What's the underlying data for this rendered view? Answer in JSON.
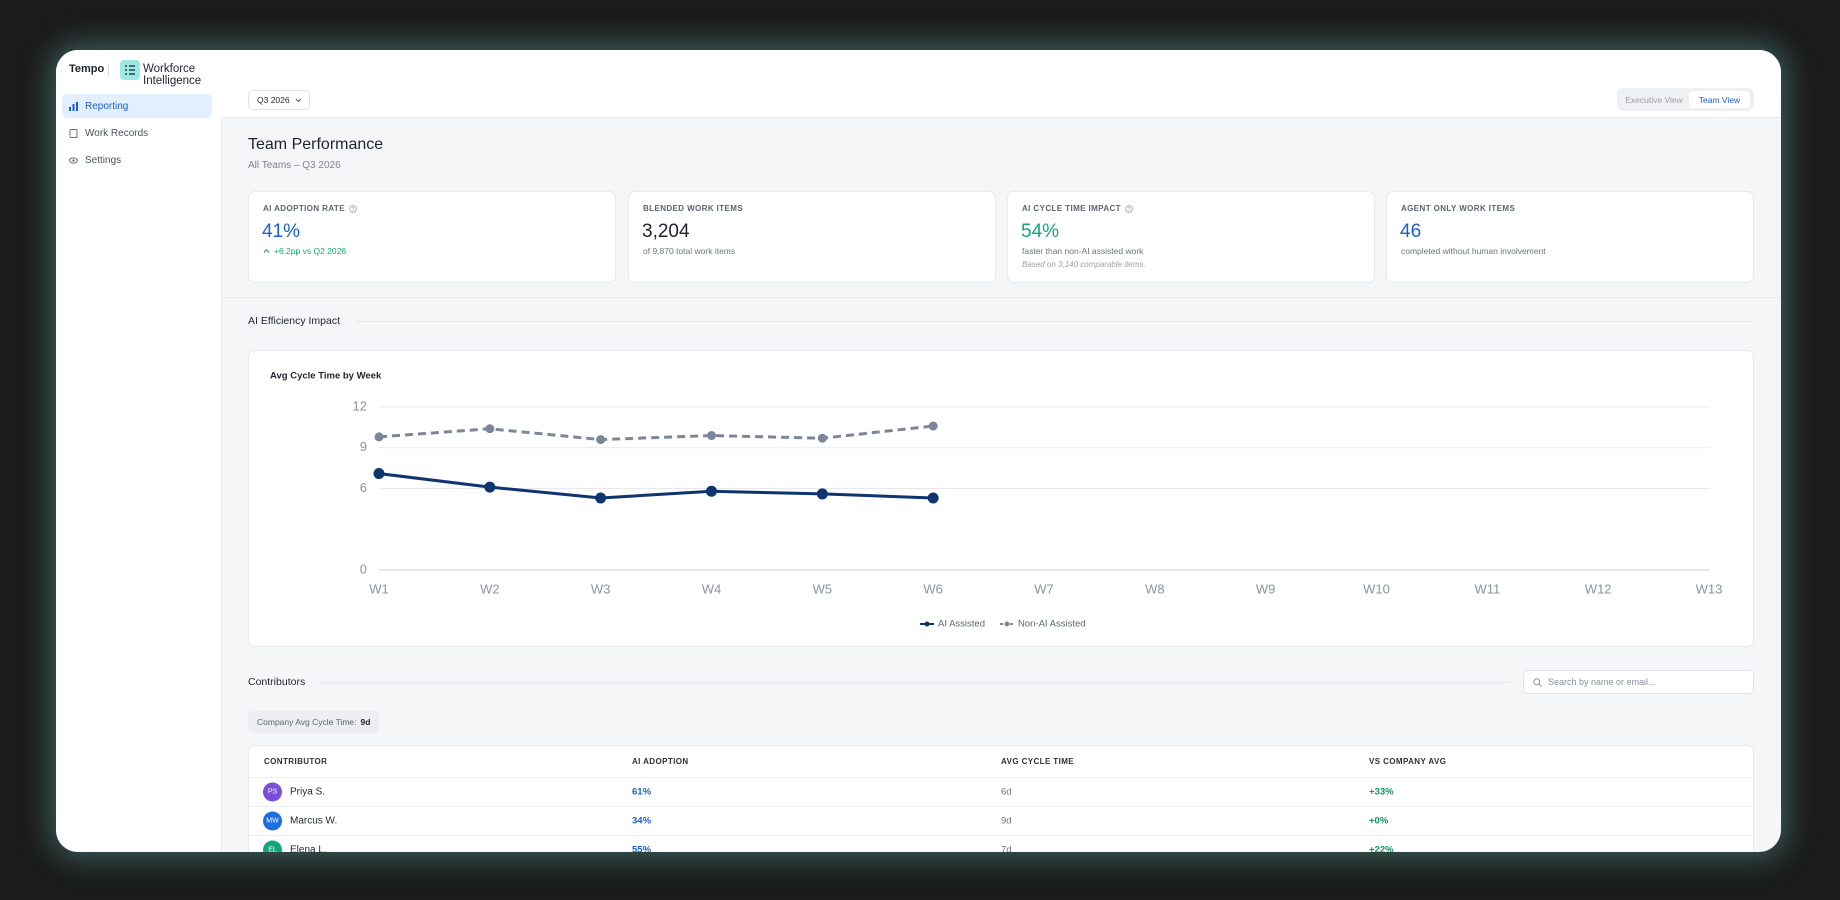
{
  "app": {
    "brand": "Tempo",
    "product": "Workforce Intelligence"
  },
  "nav": [
    "Reporting",
    "Work Records",
    "Settings"
  ],
  "period": "Q3 2026",
  "views": [
    "Executive View",
    "Team View"
  ],
  "page": {
    "title": "Team Performance",
    "subtitle": "All Teams – Q3 2026"
  },
  "cards": [
    {
      "label": "AI ADOPTION RATE",
      "value": "41%",
      "note": "+6.2pp vs Q2 2026"
    },
    {
      "label": "BLENDED WORK ITEMS",
      "value": "3,204",
      "note": "of 9,870 total work items"
    },
    {
      "label": "AI CYCLE TIME IMPACT",
      "value": "54%",
      "note": "faster than non-AI assisted work",
      "footnote": "Based on 3,140 comparable items."
    },
    {
      "label": "AGENT ONLY WORK ITEMS",
      "value": "46",
      "note": "completed without human involvement"
    }
  ],
  "section_title": "AI Efficiency Impact",
  "chart_data": {
    "type": "line",
    "title": "Avg Cycle Time by Week",
    "categories": [
      "W1",
      "W2",
      "W3",
      "W4",
      "W5",
      "W6",
      "W7",
      "W8",
      "W9",
      "W10",
      "W11",
      "W12",
      "W13"
    ],
    "series": [
      {
        "name": "AI Assisted",
        "color": "#0f3570",
        "values": [
          7.1,
          6.1,
          5.3,
          5.8,
          5.6,
          5.3,
          null,
          null,
          null,
          null,
          null,
          null,
          null
        ]
      },
      {
        "name": "Non-AI Assisted",
        "color": "#7b8799",
        "dashed": true,
        "values": [
          9.8,
          10.4,
          9.6,
          9.9,
          9.7,
          10.6,
          null,
          null,
          null,
          null,
          null,
          null,
          null
        ]
      }
    ],
    "ylim": [
      0,
      12
    ],
    "yticks": [
      0,
      6,
      9,
      12
    ],
    "grid": true,
    "legend": "bottom"
  },
  "contributors": {
    "title": "Contributors",
    "search_placeholder": "Search by name or email...",
    "company_avg_label": "Company Avg Cycle Time:",
    "company_avg_value": "9d",
    "columns": [
      "CONTRIBUTOR",
      "AI ADOPTION",
      "AVG CYCLE TIME",
      "VS COMPANY AVG"
    ],
    "rows": [
      {
        "initials": "PS",
        "color": "#7c4ddb",
        "name": "Priya S.",
        "ai_adoption": "61%",
        "avg_cycle_time": "6d",
        "vs_company_avg": "+33%"
      },
      {
        "initials": "MW",
        "color": "#1d6fe0",
        "name": "Marcus W.",
        "ai_adoption": "34%",
        "avg_cycle_time": "9d",
        "vs_company_avg": "+0%"
      },
      {
        "initials": "EL",
        "color": "#12a67a",
        "name": "Elena L.",
        "ai_adoption": "55%",
        "avg_cycle_time": "7d",
        "vs_company_avg": "+22%"
      }
    ]
  }
}
